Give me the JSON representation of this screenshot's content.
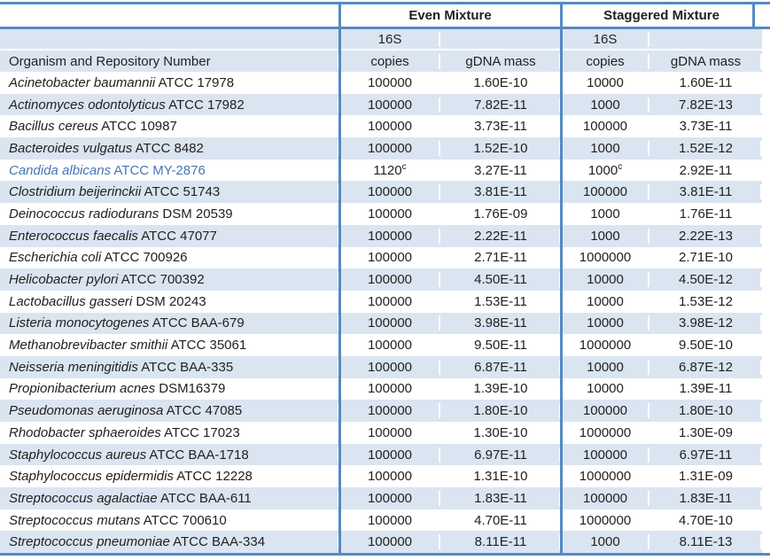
{
  "colors": {
    "band": "#dbe5f1",
    "border": "#558ac2",
    "text": "#212121",
    "highlight_text": "#4576b5"
  },
  "header": {
    "even": "Even Mixture",
    "staggered": "Staggered Mixture"
  },
  "subheader": {
    "organism_col": "Organism and Repository Number",
    "copies_top": "16S",
    "copies_bottom": "copies",
    "gdna": "gDNA mass"
  },
  "rows": [
    {
      "organism": "Acinetobacter baumannii",
      "repository": "ATCC 17978",
      "even_copies": "100000",
      "even_copies_sup": "",
      "even_gdna": "1.60E-10",
      "staggered_copies": "10000",
      "staggered_copies_sup": "",
      "staggered_gdna": "1.60E-11",
      "highlight": false
    },
    {
      "organism": "Actinomyces odontolyticus",
      "repository": "ATCC 17982",
      "even_copies": "100000",
      "even_copies_sup": "",
      "even_gdna": "7.82E-11",
      "staggered_copies": "1000",
      "staggered_copies_sup": "",
      "staggered_gdna": "7.82E-13",
      "highlight": false
    },
    {
      "organism": "Bacillus cereus",
      "repository": "ATCC 10987",
      "even_copies": "100000",
      "even_copies_sup": "",
      "even_gdna": "3.73E-11",
      "staggered_copies": "100000",
      "staggered_copies_sup": "",
      "staggered_gdna": "3.73E-11",
      "highlight": false
    },
    {
      "organism": "Bacteroides vulgatus",
      "repository": "ATCC 8482",
      "even_copies": "100000",
      "even_copies_sup": "",
      "even_gdna": "1.52E-10",
      "staggered_copies": "1000",
      "staggered_copies_sup": "",
      "staggered_gdna": "1.52E-12",
      "highlight": false
    },
    {
      "organism": "Candida albicans",
      "repository": "ATCC MY-2876",
      "even_copies": "1120",
      "even_copies_sup": "c",
      "even_gdna": "3.27E-11",
      "staggered_copies": "1000",
      "staggered_copies_sup": "c",
      "staggered_gdna": "2.92E-11",
      "highlight": true
    },
    {
      "organism": "Clostridium beijerinckii",
      "repository": "ATCC 51743",
      "even_copies": "100000",
      "even_copies_sup": "",
      "even_gdna": "3.81E-11",
      "staggered_copies": "100000",
      "staggered_copies_sup": "",
      "staggered_gdna": "3.81E-11",
      "highlight": false
    },
    {
      "organism": "Deinococcus radiodurans",
      "repository": "DSM 20539",
      "even_copies": "100000",
      "even_copies_sup": "",
      "even_gdna": "1.76E-09",
      "staggered_copies": "1000",
      "staggered_copies_sup": "",
      "staggered_gdna": "1.76E-11",
      "highlight": false
    },
    {
      "organism": "Enterococcus faecalis",
      "repository": "ATCC 47077",
      "even_copies": "100000",
      "even_copies_sup": "",
      "even_gdna": "2.22E-11",
      "staggered_copies": "1000",
      "staggered_copies_sup": "",
      "staggered_gdna": "2.22E-13",
      "highlight": false
    },
    {
      "organism": "Escherichia coli",
      "repository": "ATCC 700926",
      "even_copies": "100000",
      "even_copies_sup": "",
      "even_gdna": "2.71E-11",
      "staggered_copies": "1000000",
      "staggered_copies_sup": "",
      "staggered_gdna": "2.71E-10",
      "highlight": false
    },
    {
      "organism": "Helicobacter pylori",
      "repository": "ATCC 700392",
      "even_copies": "100000",
      "even_copies_sup": "",
      "even_gdna": "4.50E-11",
      "staggered_copies": "10000",
      "staggered_copies_sup": "",
      "staggered_gdna": "4.50E-12",
      "highlight": false
    },
    {
      "organism": "Lactobacillus gasseri",
      "repository": "DSM 20243",
      "even_copies": "100000",
      "even_copies_sup": "",
      "even_gdna": "1.53E-11",
      "staggered_copies": "10000",
      "staggered_copies_sup": "",
      "staggered_gdna": "1.53E-12",
      "highlight": false
    },
    {
      "organism": "Listeria monocytogenes",
      "repository": "ATCC BAA-679",
      "even_copies": "100000",
      "even_copies_sup": "",
      "even_gdna": "3.98E-11",
      "staggered_copies": "10000",
      "staggered_copies_sup": "",
      "staggered_gdna": "3.98E-12",
      "highlight": false
    },
    {
      "organism": "Methanobrevibacter smithii",
      "repository": "ATCC 35061",
      "even_copies": "100000",
      "even_copies_sup": "",
      "even_gdna": "9.50E-11",
      "staggered_copies": "1000000",
      "staggered_copies_sup": "",
      "staggered_gdna": "9.50E-10",
      "highlight": false
    },
    {
      "organism": "Neisseria meningitidis",
      "repository": "ATCC BAA-335",
      "even_copies": "100000",
      "even_copies_sup": "",
      "even_gdna": "6.87E-11",
      "staggered_copies": "10000",
      "staggered_copies_sup": "",
      "staggered_gdna": "6.87E-12",
      "highlight": false
    },
    {
      "organism": "Propionibacterium acnes",
      "repository": "DSM16379",
      "even_copies": "100000",
      "even_copies_sup": "",
      "even_gdna": "1.39E-10",
      "staggered_copies": "10000",
      "staggered_copies_sup": "",
      "staggered_gdna": "1.39E-11",
      "highlight": false
    },
    {
      "organism": "Pseudomonas aeruginosa",
      "repository": "ATCC 47085",
      "even_copies": "100000",
      "even_copies_sup": "",
      "even_gdna": "1.80E-10",
      "staggered_copies": "100000",
      "staggered_copies_sup": "",
      "staggered_gdna": "1.80E-10",
      "highlight": false
    },
    {
      "organism": "Rhodobacter sphaeroides",
      "repository": "ATCC 17023",
      "even_copies": "100000",
      "even_copies_sup": "",
      "even_gdna": "1.30E-10",
      "staggered_copies": "1000000",
      "staggered_copies_sup": "",
      "staggered_gdna": "1.30E-09",
      "highlight": false
    },
    {
      "organism": "Staphylococcus aureus",
      "repository": "ATCC BAA-1718",
      "even_copies": "100000",
      "even_copies_sup": "",
      "even_gdna": "6.97E-11",
      "staggered_copies": "100000",
      "staggered_copies_sup": "",
      "staggered_gdna": "6.97E-11",
      "highlight": false
    },
    {
      "organism": "Staphylococcus epidermidis",
      "repository": "ATCC 12228",
      "even_copies": "100000",
      "even_copies_sup": "",
      "even_gdna": "1.31E-10",
      "staggered_copies": "1000000",
      "staggered_copies_sup": "",
      "staggered_gdna": "1.31E-09",
      "highlight": false
    },
    {
      "organism": "Streptococcus agalactiae",
      "repository": "ATCC BAA-611",
      "even_copies": "100000",
      "even_copies_sup": "",
      "even_gdna": "1.83E-11",
      "staggered_copies": "100000",
      "staggered_copies_sup": "",
      "staggered_gdna": "1.83E-11",
      "highlight": false
    },
    {
      "organism": "Streptococcus mutans",
      "repository": "ATCC 700610",
      "even_copies": "100000",
      "even_copies_sup": "",
      "even_gdna": "4.70E-11",
      "staggered_copies": "1000000",
      "staggered_copies_sup": "",
      "staggered_gdna": "4.70E-10",
      "highlight": false
    },
    {
      "organism": "Streptococcus pneumoniae",
      "repository": "ATCC BAA-334",
      "even_copies": "100000",
      "even_copies_sup": "",
      "even_gdna": "8.11E-11",
      "staggered_copies": "1000",
      "staggered_copies_sup": "",
      "staggered_gdna": "8.11E-13",
      "highlight": false
    }
  ]
}
